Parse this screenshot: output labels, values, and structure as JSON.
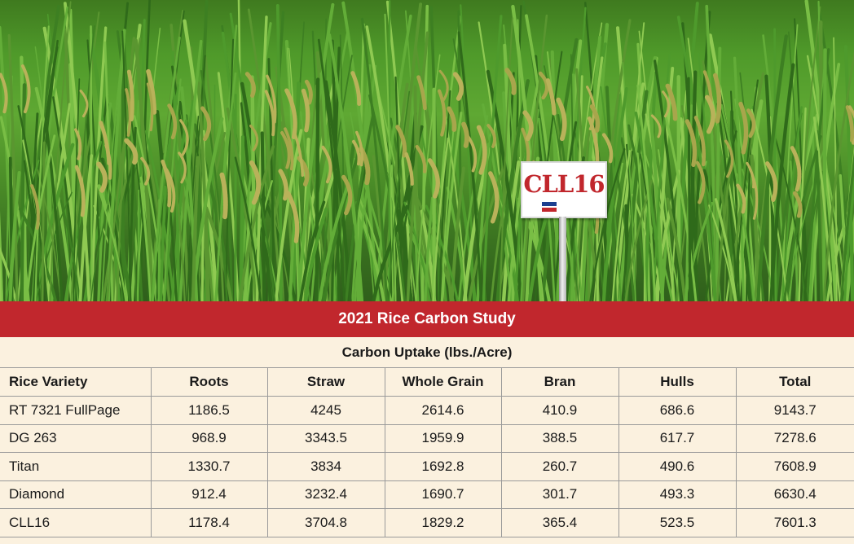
{
  "sign": {
    "label": "CLL16"
  },
  "chart_data": {
    "type": "table",
    "title": "2021 Rice Carbon Study",
    "subtitle": "Carbon Uptake (lbs./Acre)",
    "columns": [
      "Rice Variety",
      "Roots",
      "Straw",
      "Whole Grain",
      "Bran",
      "Hulls",
      "Total"
    ],
    "rows": [
      [
        "RT 7321 FullPage",
        "1186.5",
        "4245",
        "2614.6",
        "410.9",
        "686.6",
        "9143.7"
      ],
      [
        "DG 263",
        "968.9",
        "3343.5",
        "1959.9",
        "388.5",
        "617.7",
        "7278.6"
      ],
      [
        "Titan",
        "1330.7",
        "3834",
        "1692.8",
        "260.7",
        "490.6",
        "7608.9"
      ],
      [
        "Diamond",
        "912.4",
        "3232.4",
        "1690.7",
        "301.7",
        "493.3",
        "6630.4"
      ],
      [
        "CLL16",
        "1178.4",
        "3704.8",
        "1829.2",
        "365.4",
        "523.5",
        "7601.3"
      ]
    ]
  },
  "colors": {
    "header_red": "#c1272d",
    "table_bg": "#fbf1df"
  }
}
